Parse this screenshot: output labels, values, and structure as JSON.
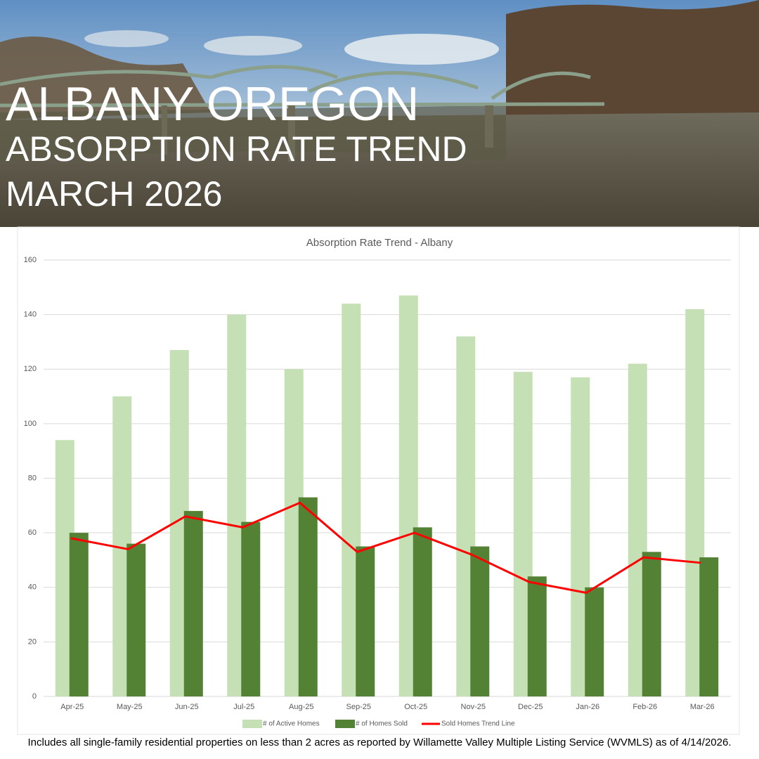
{
  "header": {
    "line1": "ALBANY OREGON",
    "line2": "ABSORPTION RATE TREND",
    "line3": "MARCH 2026"
  },
  "chart_data": {
    "type": "bar_line",
    "title": "Absorption Rate Trend - Albany",
    "categories": [
      "Apr-25",
      "May-25",
      "Jun-25",
      "Jul-25",
      "Aug-25",
      "Sep-25",
      "Oct-25",
      "Nov-25",
      "Dec-25",
      "Jan-26",
      "Feb-26",
      "Mar-26"
    ],
    "series": [
      {
        "name": "# of Active Homes",
        "color": "#c5e0b4",
        "kind": "bar",
        "values": [
          94,
          110,
          127,
          140,
          120,
          144,
          147,
          132,
          119,
          117,
          122,
          142
        ]
      },
      {
        "name": "# of Homes Sold",
        "color": "#548235",
        "kind": "bar",
        "values": [
          60,
          56,
          68,
          64,
          73,
          55,
          62,
          55,
          44,
          40,
          53,
          51
        ]
      },
      {
        "name": "Sold Homes Trend Line",
        "color": "#ff0000",
        "kind": "line",
        "values": [
          58,
          54,
          66,
          62,
          71,
          53,
          60,
          52,
          42,
          38,
          51,
          49
        ]
      }
    ],
    "ylim": [
      0,
      160
    ],
    "yticks": [
      0,
      20,
      40,
      60,
      80,
      100,
      120,
      140,
      160
    ],
    "grid": true,
    "legend": "bottom"
  },
  "footnote": "Includes all single-family residential properties on less than 2 acres as reported by Willamette Valley Multiple Listing Service (WVMLS) as of 4/14/2026."
}
